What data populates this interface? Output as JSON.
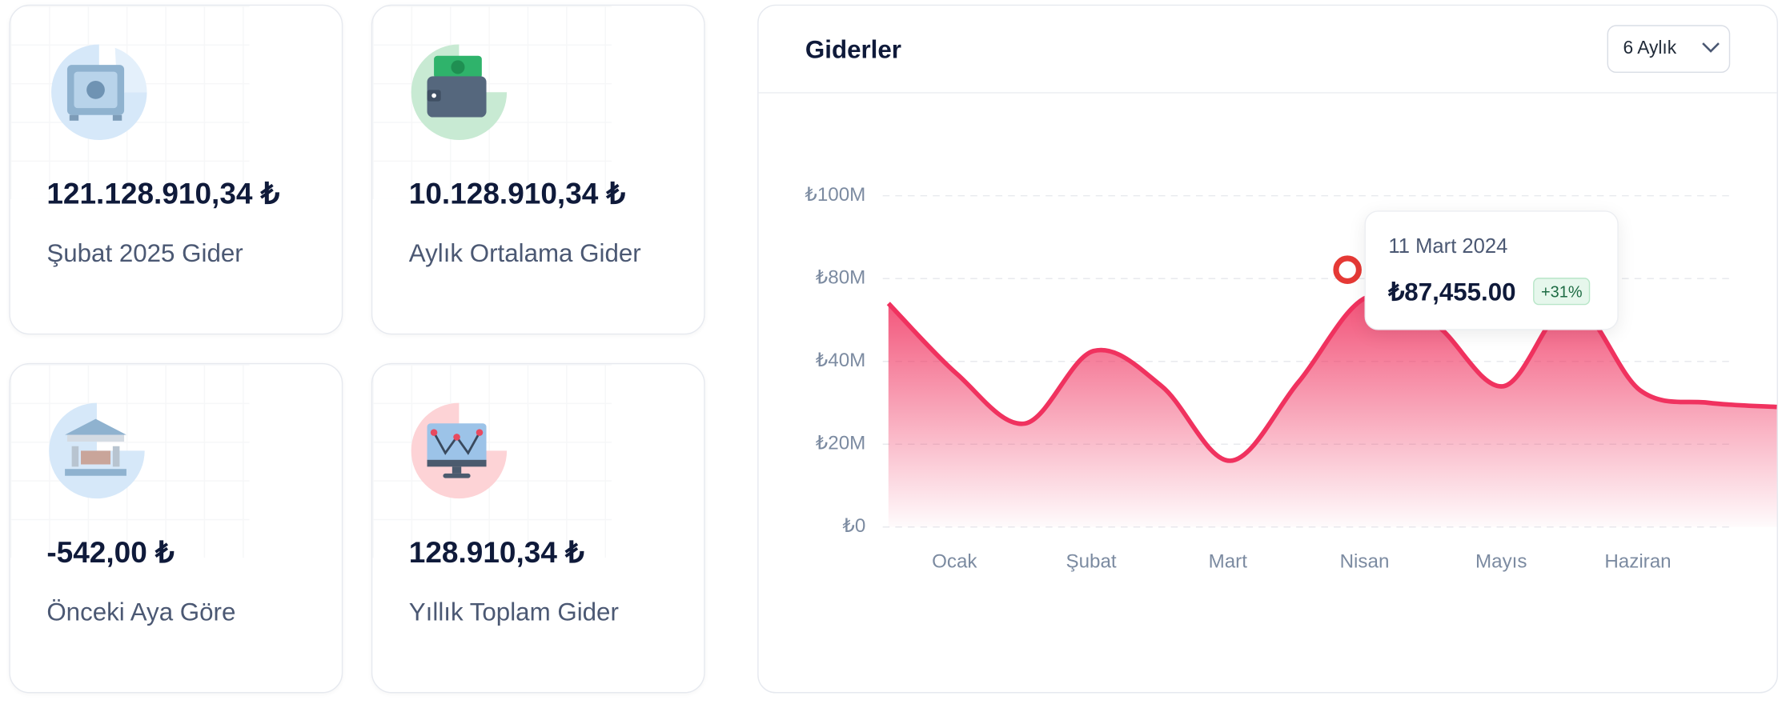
{
  "cards": [
    {
      "value": "121.128.910,34 ₺",
      "label": "Şubat 2025 Gider"
    },
    {
      "value": "10.128.910,34 ₺",
      "label": "Aylık Ortalama Gider"
    },
    {
      "value": "-542,00 ₺",
      "label": "Önceki Aya Göre"
    },
    {
      "value": "128.910,34 ₺",
      "label": "Yıllık Toplam Gider"
    }
  ],
  "panel": {
    "title": "Giderler",
    "dropdown": "6 Aylık"
  },
  "chart_data": {
    "type": "line",
    "categories": [
      null,
      "Ocak",
      null,
      "Şubat",
      null,
      "Mart",
      null,
      "Nisan",
      null,
      "Mayıs",
      null,
      "Haziran",
      null,
      null
    ],
    "series": [
      {
        "name": "Giderler",
        "color": "#f0325f",
        "values": [
          68000000,
          37000000,
          25000000,
          45000000,
          34000000,
          16000000,
          35000000,
          71000000,
          58000000,
          34000000,
          68000000,
          33000000,
          30000000,
          29000000
        ]
      }
    ],
    "ylim": [
      0,
      100000000
    ],
    "yticks": [
      {
        "value": 0,
        "label": "₺0"
      },
      {
        "value": 20000000,
        "label": "₺20M"
      },
      {
        "value": 40000000,
        "label": "₺40M"
      },
      {
        "value": 80000000,
        "label": "₺80M"
      },
      {
        "value": 100000000,
        "label": "₺100M"
      }
    ],
    "grid": true,
    "tooltip": {
      "date": "11 Mart 2024",
      "value": "₺87,455.00",
      "change": "+31%"
    }
  }
}
